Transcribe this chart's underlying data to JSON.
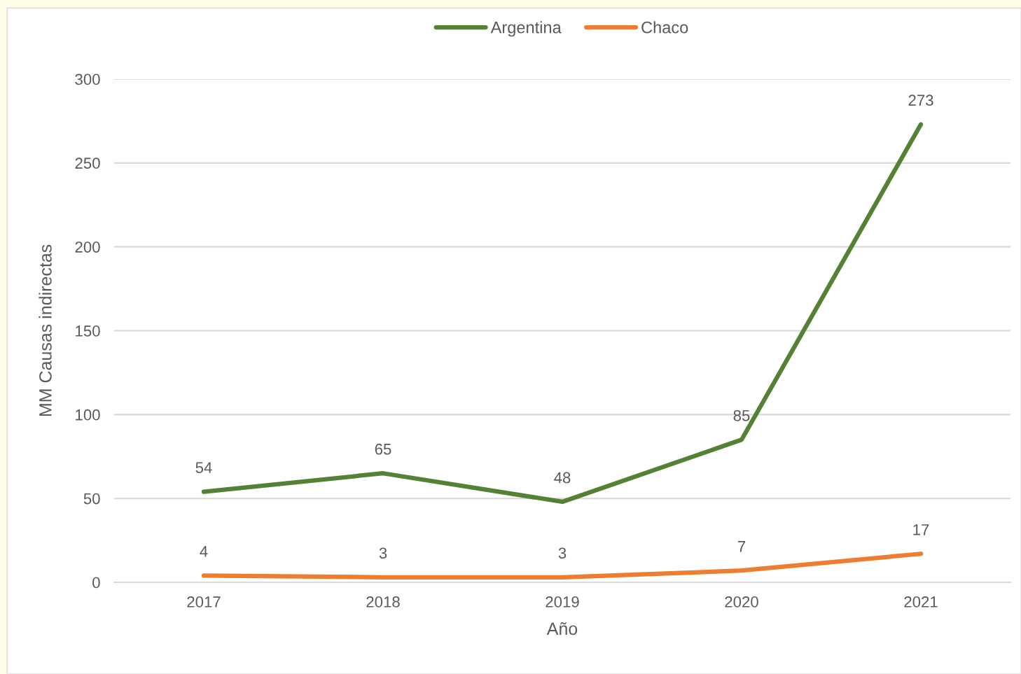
{
  "chart_data": {
    "type": "line",
    "xlabel": "Año",
    "ylabel": "MM Causas indirectas",
    "categories": [
      "2017",
      "2018",
      "2019",
      "2020",
      "2021"
    ],
    "series": [
      {
        "name": "Argentina",
        "color": "#548235",
        "values": [
          54,
          65,
          48,
          85,
          273
        ]
      },
      {
        "name": "Chaco",
        "color": "#ed7d31",
        "values": [
          4,
          3,
          3,
          7,
          17
        ]
      }
    ],
    "ylim": [
      0,
      300
    ],
    "yticks": [
      0,
      50,
      100,
      150,
      200,
      250,
      300
    ],
    "grid": "y",
    "legend": "top",
    "data_labels": true,
    "marker": "none",
    "line_style": "solid"
  }
}
